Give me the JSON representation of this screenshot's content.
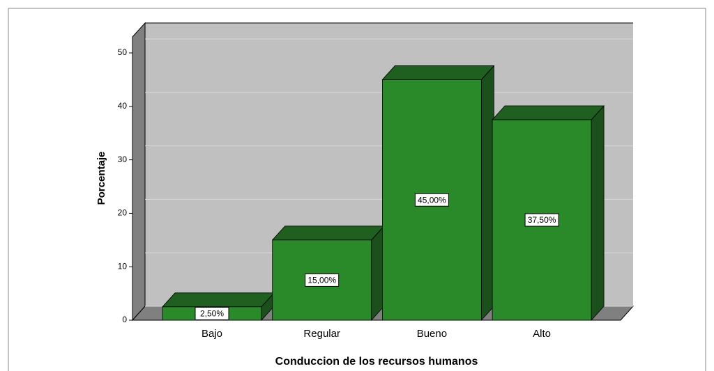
{
  "chart_data": {
    "type": "bar3d",
    "ylabel": "Porcentaje",
    "xlabel": "Conduccion de los recursos humanos",
    "categories": [
      "Bajo",
      "Regular",
      "Bueno",
      "Alto"
    ],
    "values": [
      2.5,
      15,
      45,
      37.5
    ],
    "value_labels": [
      "2,50%",
      "15,00%",
      "45,00%",
      "37,50%"
    ],
    "color": "#2a8a2a",
    "ylim": [
      0,
      53
    ],
    "yticks": [
      0,
      10,
      20,
      30,
      40,
      50
    ],
    "grid": true
  }
}
